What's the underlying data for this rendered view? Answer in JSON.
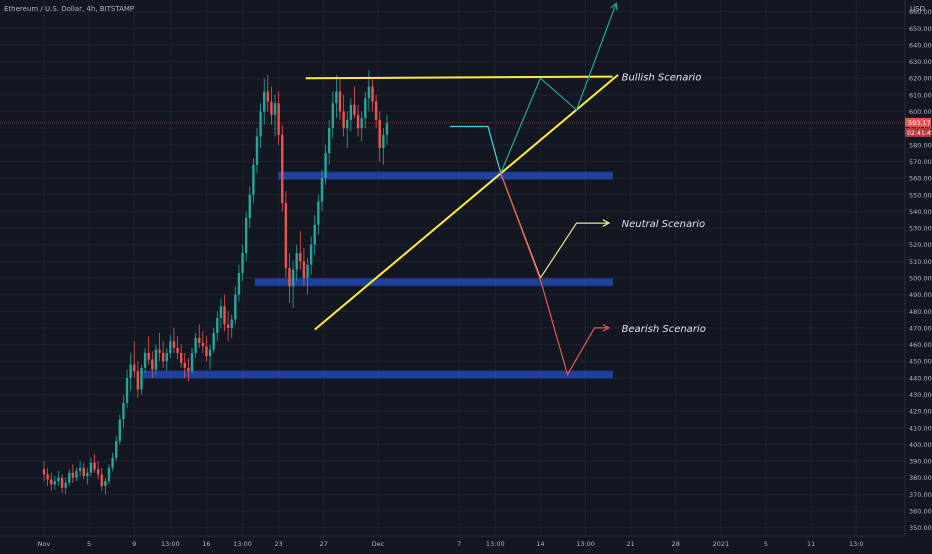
{
  "header": {
    "symbol_label": "Ethereum / U.S. Dollar, 4h, BITSTAMP"
  },
  "price_axis": {
    "currency_label": "USD",
    "current_price_tag": "593.17",
    "countdown_tag": "02:41:45",
    "ticks": [
      350,
      360,
      370,
      380,
      390,
      400,
      410,
      420,
      430,
      440,
      450,
      460,
      470,
      480,
      490,
      500,
      510,
      520,
      530,
      540,
      550,
      560,
      570,
      580,
      590,
      600,
      610,
      620,
      630,
      640,
      650,
      660
    ]
  },
  "time_axis": {
    "ticks": [
      {
        "label": "Nov",
        "t": 0.0
      },
      {
        "label": "5",
        "t": 2.5
      },
      {
        "label": "9",
        "t": 5.0
      },
      {
        "label": "13:00",
        "t": 7.0
      },
      {
        "label": "16",
        "t": 9.0
      },
      {
        "label": "13:00",
        "t": 11.0
      },
      {
        "label": "23",
        "t": 13.0
      },
      {
        "label": "27",
        "t": 15.5
      },
      {
        "label": "Dec",
        "t": 18.5
      },
      {
        "label": "7",
        "t": 23.0
      },
      {
        "label": "13:00",
        "t": 25.0
      },
      {
        "label": "14",
        "t": 27.5
      },
      {
        "label": "13:00",
        "t": 30.0
      },
      {
        "label": "21",
        "t": 32.5
      },
      {
        "label": "28",
        "t": 35.0
      },
      {
        "label": "2021",
        "t": 37.5
      },
      {
        "label": "5",
        "t": 40.0
      },
      {
        "label": "11",
        "t": 42.5
      },
      {
        "label": "13:0",
        "t": 45.0
      }
    ]
  },
  "colors": {
    "background": "#131722",
    "grid": "#1f2330",
    "axis_text": "#b2b5be",
    "candle_up": "#26a69a",
    "candle_down": "#ef5350",
    "support_zone": "#2962ff",
    "trend_line": "#ffeb3b",
    "bull_path": "#26a69a",
    "neutral_path": "#f0e68c",
    "bear_path": "#ef5350",
    "scenario_text": "#e0e3eb",
    "price_tag": "#ef5350"
  },
  "chart_data": {
    "type": "candlestick",
    "title": "Ethereum / U.S. Dollar, 4h, BITSTAMP",
    "ylabel": "USD",
    "ylim": [
      345,
      667
    ],
    "grid": true,
    "current_price": 593.17,
    "candles": [
      [
        385,
        390,
        378,
        382
      ],
      [
        382,
        386,
        375,
        379
      ],
      [
        379,
        383,
        372,
        376
      ],
      [
        376,
        381,
        373,
        378
      ],
      [
        378,
        384,
        375,
        380
      ],
      [
        380,
        382,
        371,
        374
      ],
      [
        374,
        380,
        370,
        377
      ],
      [
        377,
        385,
        375,
        383
      ],
      [
        383,
        388,
        377,
        380
      ],
      [
        380,
        386,
        378,
        384
      ],
      [
        384,
        390,
        381,
        386
      ],
      [
        386,
        389,
        379,
        381
      ],
      [
        381,
        386,
        376,
        383
      ],
      [
        383,
        392,
        381,
        389
      ],
      [
        389,
        394,
        383,
        385
      ],
      [
        385,
        390,
        379,
        382
      ],
      [
        382,
        386,
        372,
        375
      ],
      [
        375,
        380,
        370,
        378
      ],
      [
        378,
        388,
        376,
        386
      ],
      [
        386,
        395,
        384,
        392
      ],
      [
        392,
        405,
        390,
        402
      ],
      [
        402,
        418,
        400,
        415
      ],
      [
        415,
        430,
        410,
        425
      ],
      [
        425,
        445,
        422,
        440
      ],
      [
        440,
        455,
        432,
        448
      ],
      [
        448,
        462,
        440,
        444
      ],
      [
        444,
        450,
        428,
        433
      ],
      [
        433,
        448,
        430,
        446
      ],
      [
        446,
        458,
        443,
        455
      ],
      [
        455,
        465,
        448,
        451
      ],
      [
        451,
        456,
        440,
        445
      ],
      [
        445,
        460,
        442,
        457
      ],
      [
        457,
        467,
        450,
        455
      ],
      [
        455,
        462,
        446,
        450
      ],
      [
        450,
        458,
        444,
        455
      ],
      [
        455,
        466,
        452,
        462
      ],
      [
        462,
        470,
        455,
        458
      ],
      [
        458,
        465,
        451,
        455
      ],
      [
        455,
        460,
        446,
        449
      ],
      [
        449,
        455,
        440,
        446
      ],
      [
        446,
        452,
        438,
        444
      ],
      [
        444,
        458,
        442,
        455
      ],
      [
        455,
        467,
        452,
        464
      ],
      [
        464,
        472,
        458,
        461
      ],
      [
        461,
        468,
        455,
        459
      ],
      [
        459,
        465,
        450,
        453
      ],
      [
        453,
        460,
        445,
        457
      ],
      [
        457,
        470,
        455,
        467
      ],
      [
        467,
        480,
        462,
        476
      ],
      [
        476,
        488,
        470,
        483
      ],
      [
        483,
        490,
        468,
        472
      ],
      [
        472,
        480,
        462,
        470
      ],
      [
        470,
        478,
        464,
        475
      ],
      [
        475,
        495,
        472,
        490
      ],
      [
        490,
        508,
        486,
        503
      ],
      [
        503,
        520,
        498,
        515
      ],
      [
        515,
        540,
        510,
        536
      ],
      [
        536,
        555,
        530,
        550
      ],
      [
        550,
        572,
        545,
        568
      ],
      [
        568,
        590,
        563,
        585
      ],
      [
        585,
        605,
        578,
        600
      ],
      [
        600,
        620,
        592,
        612
      ],
      [
        612,
        622,
        600,
        606
      ],
      [
        606,
        615,
        592,
        598
      ],
      [
        598,
        610,
        585,
        605
      ],
      [
        605,
        612,
        580,
        586
      ],
      [
        586,
        592,
        540,
        545
      ],
      [
        545,
        552,
        500,
        506
      ],
      [
        506,
        515,
        485,
        495
      ],
      [
        495,
        510,
        482,
        505
      ],
      [
        505,
        520,
        498,
        515
      ],
      [
        515,
        528,
        505,
        510
      ],
      [
        510,
        518,
        495,
        500
      ],
      [
        500,
        512,
        490,
        508
      ],
      [
        508,
        525,
        502,
        520
      ],
      [
        520,
        538,
        514,
        532
      ],
      [
        532,
        550,
        526,
        546
      ],
      [
        546,
        565,
        540,
        560
      ],
      [
        560,
        580,
        556,
        575
      ],
      [
        575,
        595,
        568,
        590
      ],
      [
        590,
        612,
        584,
        605
      ],
      [
        605,
        622,
        596,
        612
      ],
      [
        612,
        620,
        595,
        600
      ],
      [
        600,
        610,
        585,
        590
      ],
      [
        590,
        600,
        578,
        595
      ],
      [
        595,
        608,
        588,
        604
      ],
      [
        604,
        615,
        596,
        598
      ],
      [
        598,
        604,
        585,
        590
      ],
      [
        590,
        600,
        582,
        596
      ],
      [
        596,
        612,
        590,
        608
      ],
      [
        608,
        625,
        600,
        615
      ],
      [
        615,
        620,
        600,
        606
      ],
      [
        606,
        610,
        590,
        595
      ],
      [
        595,
        600,
        570,
        578
      ],
      [
        578,
        590,
        568,
        586
      ],
      [
        586,
        598,
        580,
        593
      ]
    ]
  },
  "annotations": {
    "support_zones": [
      {
        "name": "upper",
        "t0": 13.0,
        "t1": 31.5,
        "price": 561.5
      },
      {
        "name": "middle",
        "t0": 11.7,
        "t1": 31.5,
        "price": 497.5
      },
      {
        "name": "lower",
        "t0": 5.5,
        "t1": 31.5,
        "price": 442
      }
    ],
    "resistance_line": {
      "t0": 14.5,
      "p0": 620,
      "t1": 31.5,
      "p1": 621
    },
    "rising_trend_line": {
      "t0": 15.0,
      "p0": 469,
      "t1": 31.8,
      "p1": 622
    },
    "projection_flat": [
      [
        22.5,
        591
      ],
      [
        24.6,
        591
      ],
      [
        25.3,
        563
      ]
    ],
    "bull_path": [
      [
        25.3,
        563
      ],
      [
        27.5,
        620
      ],
      [
        29.5,
        601
      ],
      [
        31.7,
        665
      ]
    ],
    "neutral_path": [
      [
        25.3,
        563
      ],
      [
        27.5,
        500
      ],
      [
        29.5,
        533
      ],
      [
        31.3,
        533
      ]
    ],
    "bear_path": [
      [
        25.3,
        563
      ],
      [
        27.5,
        499
      ],
      [
        29.0,
        442
      ],
      [
        30.5,
        470
      ],
      [
        31.3,
        470
      ]
    ],
    "scenario_labels": [
      {
        "text": "Bullish Scenario",
        "t": 32.0,
        "price": 621
      },
      {
        "text": "Neutral Scenario",
        "t": 32.0,
        "price": 533
      },
      {
        "text": "Bearish Scenario",
        "t": 32.0,
        "price": 470
      }
    ]
  }
}
